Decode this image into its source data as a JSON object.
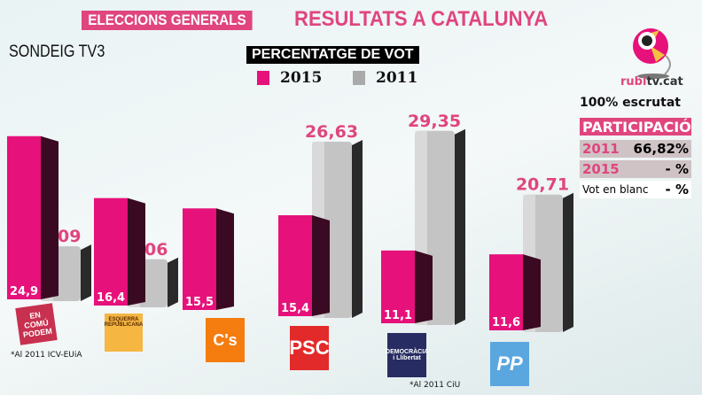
{
  "header": {
    "tag": "ELECCIONS GENERALS",
    "title": "RESULTATS A CATALUNYA",
    "subtitle": "SONDEIG TV3",
    "logo_text": "rubitv.cat"
  },
  "colors": {
    "accent": "#e0457e",
    "bar2015": "#e6117a",
    "bar2011": "#bdbdbd"
  },
  "scrutiny": "100% escrutat",
  "participation": {
    "title": "PARTICIPACIÓ",
    "rows": [
      {
        "label": "2011",
        "value": "66,82%"
      },
      {
        "label": "2015",
        "value": "- %"
      },
      {
        "label": "Vot en blanc",
        "value": "- %"
      }
    ]
  },
  "notes": [
    "*Al 2011 ICV-EUiA",
    "*Al 2011 CiU"
  ],
  "chart_data": {
    "type": "bar",
    "title": "PERCENTATGE DE VOT",
    "categories": [
      "En Comú Podem",
      "Esquerra Republicana",
      "C's",
      "PSC",
      "Democràcia i Llibertat",
      "PP"
    ],
    "series": [
      {
        "name": "2015",
        "values": [
          24.9,
          16.4,
          15.5,
          15.4,
          11.1,
          11.6
        ],
        "labels": [
          "24,9",
          "16,4",
          "15,5",
          "15,4",
          "11,1",
          "11,6"
        ]
      },
      {
        "name": "2011",
        "values": [
          8.09,
          7.06,
          null,
          26.63,
          29.35,
          20.71
        ],
        "labels": [
          "8,09",
          "7,06",
          "",
          "26,63",
          "29,35",
          "20,71"
        ]
      }
    ],
    "party_logos": [
      "EN COMÚ PODEM",
      "ESQUERRA REPUBLICANA",
      "C's",
      "PSC",
      "DEMOCRÀCIA i Llibertat",
      "PP"
    ]
  }
}
